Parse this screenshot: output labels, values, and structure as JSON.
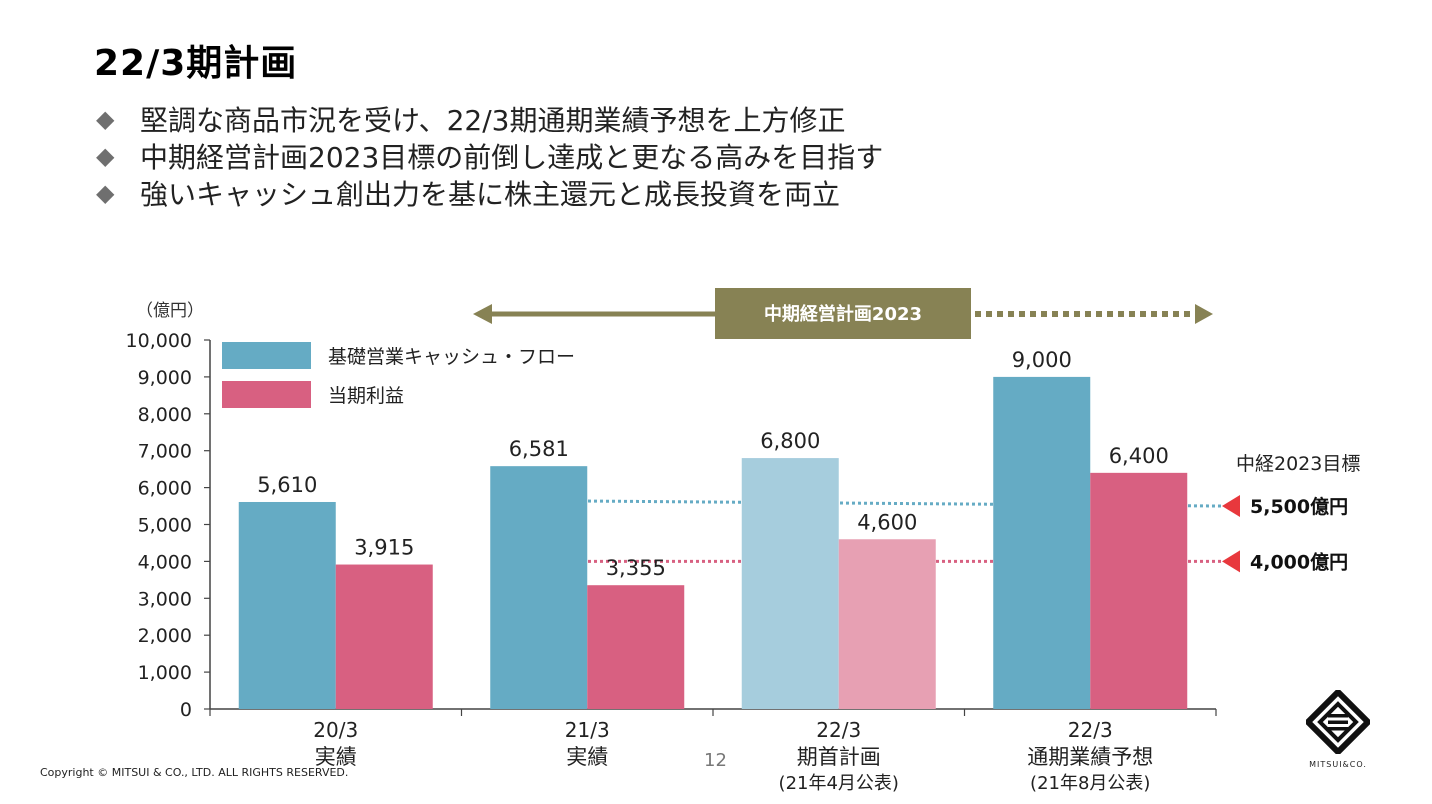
{
  "title": "22/3期計画",
  "bullets": [
    "堅調な商品市況を受け、22/3期通期業績予想を上方修正",
    "中期経営計画2023目標の前倒し達成と更なる高みを目指す",
    "強いキャッシュ創出力を基に株主還元と成長投資を両立"
  ],
  "bullet_marker": "◆",
  "chart_data": {
    "type": "bar",
    "unit_label": "（億円）",
    "ylim": [
      0,
      10000
    ],
    "yticks": [
      0,
      1000,
      2000,
      3000,
      4000,
      5000,
      6000,
      7000,
      8000,
      9000,
      10000
    ],
    "ytick_labels": [
      "0",
      "1,000",
      "2,000",
      "3,000",
      "4,000",
      "5,000",
      "6,000",
      "7,000",
      "8,000",
      "9,000",
      "10,000"
    ],
    "categories": [
      {
        "line1": "20/3",
        "line2": "実績",
        "line3": ""
      },
      {
        "line1": "21/3",
        "line2": "実績",
        "line3": ""
      },
      {
        "line1": "22/3",
        "line2": "期首計画",
        "line3": "(21年4月公表)"
      },
      {
        "line1": "22/3",
        "line2": "通期業績予想",
        "line3": "(21年8月公表)"
      }
    ],
    "series": [
      {
        "name": "基礎営業キャッシュ・フロー",
        "color": "#65abc4",
        "light_color": "#a6cddd",
        "values": [
          5610,
          6581,
          6800,
          9000
        ],
        "labels": [
          "5,610",
          "6,581",
          "6,800",
          "9,000"
        ]
      },
      {
        "name": "当期利益",
        "color": "#d86081",
        "light_color": "#e7a0b3",
        "values": [
          3915,
          3355,
          4600,
          6400
        ],
        "labels": [
          "3,915",
          "3,355",
          "4,600",
          "6,400"
        ]
      }
    ],
    "light_category_index": 2,
    "plan_banner": {
      "label": "中期経営計画2023",
      "color": "#878254"
    },
    "targets": {
      "title": "中経2023目標",
      "items": [
        {
          "value": 5500,
          "label": "5,500億円",
          "line_color": "#65abc4"
        },
        {
          "value": 4000,
          "label": "4,000億円",
          "line_color": "#d86081"
        }
      ],
      "arrow_color": "#e8383d"
    },
    "grid": false,
    "legend_position": "top-left"
  },
  "page_number": "12",
  "copyright": "Copyright © MITSUI & CO., LTD. ALL RIGHTS RESERVED.",
  "logo_text": "MITSUI&CO."
}
